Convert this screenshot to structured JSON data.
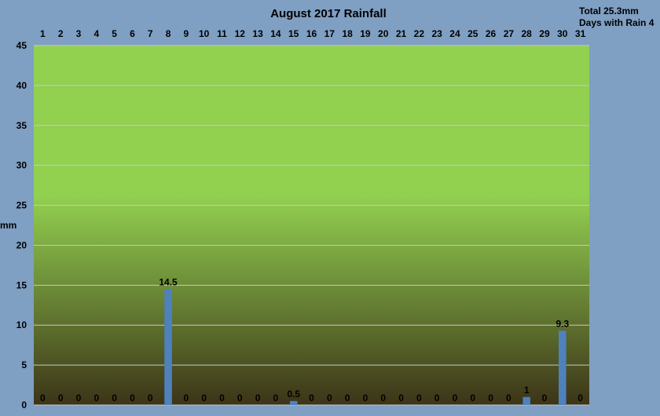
{
  "chart_data": {
    "type": "bar",
    "title": "August 2017 Rainfall",
    "ylabel": "mm",
    "xlabel": "",
    "ylim": [
      0,
      45
    ],
    "yticks": [
      0,
      5,
      10,
      15,
      20,
      25,
      30,
      35,
      40,
      45
    ],
    "x_axis_position": "top",
    "grid": true,
    "legend": "none",
    "categories": [
      "1",
      "2",
      "3",
      "4",
      "5",
      "6",
      "7",
      "8",
      "9",
      "10",
      "11",
      "12",
      "13",
      "14",
      "15",
      "16",
      "17",
      "18",
      "19",
      "20",
      "21",
      "22",
      "23",
      "24",
      "25",
      "26",
      "27",
      "28",
      "29",
      "30",
      "31"
    ],
    "values": [
      0,
      0,
      0,
      0,
      0,
      0,
      0,
      14.5,
      0,
      0,
      0,
      0,
      0,
      0,
      0.5,
      0,
      0,
      0,
      0,
      0,
      0,
      0,
      0,
      0,
      0,
      0,
      0,
      1,
      0,
      9.3,
      0
    ],
    "data_labels": [
      "0",
      "0",
      "0",
      "0",
      "0",
      "0",
      "0",
      "14.5",
      "0",
      "0",
      "0",
      "0",
      "0",
      "0",
      "0.5",
      "0",
      "0",
      "0",
      "0",
      "0",
      "0",
      "0",
      "0",
      "0",
      "0",
      "0",
      "0",
      "1",
      "0",
      "9.3",
      "0"
    ],
    "summary": {
      "total": "Total  25.3mm",
      "days_with_rain": "Days with Rain 4"
    },
    "colors": {
      "background": "#7f9fc3",
      "plot_top": "#92d050",
      "plot_bottom": "#3c3418",
      "bar": "#4f81bd",
      "gridline": "#c8c8c8"
    }
  }
}
